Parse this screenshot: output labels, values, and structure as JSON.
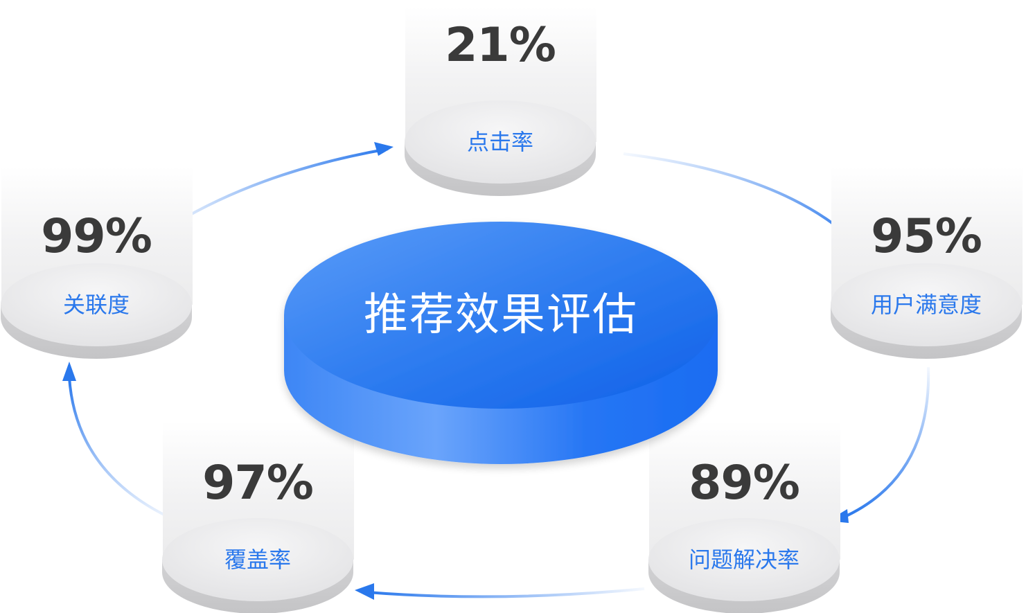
{
  "center": {
    "title": "推荐效果评估",
    "color_top": "#2f7df0",
    "color_side": "#1b6ef5"
  },
  "metrics": [
    {
      "id": "click-rate",
      "label": "点击率",
      "value": "21%"
    },
    {
      "id": "user-satisfaction",
      "label": "用户满意度",
      "value": "95%"
    },
    {
      "id": "problem-resolution-rate",
      "label": "问题解决率",
      "value": "89%"
    },
    {
      "id": "coverage-rate",
      "label": "覆盖率",
      "value": "97%"
    },
    {
      "id": "relevance",
      "label": "关联度",
      "value": "99%"
    }
  ],
  "colors": {
    "arrow": "#2a78ec",
    "label": "#2a78ec",
    "value": "#3a3a3a",
    "disc_top": "#eeeeef",
    "disc_side": "#d6d6d8"
  }
}
